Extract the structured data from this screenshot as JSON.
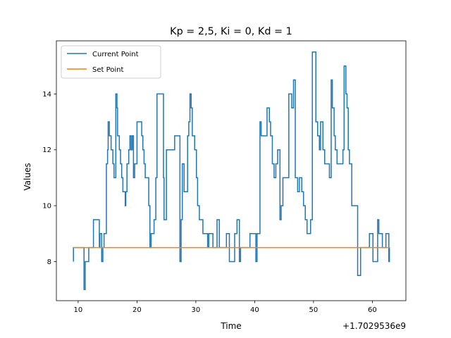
{
  "chart_data": {
    "type": "line",
    "title": "Kp = 2,5, Ki = 0, Kd = 1",
    "xlabel": "Time",
    "ylabel": "Values",
    "x_offset_label": "+1.7029536e9",
    "xlim": [
      6.3,
      65.7
    ],
    "ylim": [
      6.6,
      15.9
    ],
    "x_ticks": [
      10,
      20,
      30,
      40,
      50,
      60
    ],
    "y_ticks": [
      8,
      10,
      12,
      14
    ],
    "grid": false,
    "legend_position": "upper left",
    "series": [
      {
        "name": "Current Point",
        "color": "#1f77b4",
        "step": true,
        "points": [
          [
            9.2,
            8.0
          ],
          [
            9.2,
            8.5
          ],
          [
            10.9,
            8.5
          ],
          [
            11.0,
            7.0
          ],
          [
            11.2,
            8.0
          ],
          [
            11.8,
            8.5
          ],
          [
            12.6,
            9.5
          ],
          [
            13.6,
            8.5
          ],
          [
            13.7,
            9.0
          ],
          [
            14.0,
            8.0
          ],
          [
            14.2,
            8.5
          ],
          [
            14.4,
            9.0
          ],
          [
            14.8,
            11.5
          ],
          [
            15.0,
            12.0
          ],
          [
            15.1,
            13.0
          ],
          [
            15.3,
            12.5
          ],
          [
            15.6,
            12.0
          ],
          [
            15.9,
            11.5
          ],
          [
            16.1,
            11.0
          ],
          [
            16.4,
            14.0
          ],
          [
            16.6,
            13.5
          ],
          [
            16.7,
            12.5
          ],
          [
            17.0,
            12.0
          ],
          [
            17.2,
            11.5
          ],
          [
            17.4,
            11.0
          ],
          [
            17.6,
            10.5
          ],
          [
            18.0,
            10.0
          ],
          [
            18.1,
            10.5
          ],
          [
            18.3,
            11.5
          ],
          [
            18.6,
            12.0
          ],
          [
            18.8,
            12.5
          ],
          [
            19.0,
            12.0
          ],
          [
            19.2,
            12.5
          ],
          [
            19.4,
            11.0
          ],
          [
            19.6,
            11.5
          ],
          [
            20.0,
            13.0
          ],
          [
            20.8,
            12.5
          ],
          [
            21.0,
            12.0
          ],
          [
            21.2,
            11.5
          ],
          [
            21.4,
            11.0
          ],
          [
            22.0,
            10.0
          ],
          [
            22.2,
            8.5
          ],
          [
            22.4,
            9.0
          ],
          [
            22.9,
            9.5
          ],
          [
            23.2,
            11.0
          ],
          [
            23.4,
            14.0
          ],
          [
            24.5,
            11.0
          ],
          [
            24.6,
            9.5
          ],
          [
            25.0,
            12.0
          ],
          [
            26.4,
            12.5
          ],
          [
            27.3,
            8.0
          ],
          [
            27.5,
            9.5
          ],
          [
            27.7,
            11.5
          ],
          [
            28.0,
            10.5
          ],
          [
            28.6,
            12.5
          ],
          [
            28.8,
            13.0
          ],
          [
            29.0,
            14.0
          ],
          [
            29.2,
            13.5
          ],
          [
            29.4,
            12.5
          ],
          [
            29.8,
            12.0
          ],
          [
            30.1,
            11.0
          ],
          [
            30.3,
            10.0
          ],
          [
            30.6,
            9.5
          ],
          [
            31.2,
            9.0
          ],
          [
            32.0,
            8.5
          ],
          [
            32.2,
            9.0
          ],
          [
            32.5,
            9.0
          ],
          [
            32.9,
            8.5
          ],
          [
            33.6,
            9.5
          ],
          [
            34.0,
            8.5
          ],
          [
            35.2,
            9.0
          ],
          [
            35.7,
            8.0
          ],
          [
            36.6,
            9.0
          ],
          [
            37.0,
            9.5
          ],
          [
            37.4,
            8.0
          ],
          [
            37.6,
            8.5
          ],
          [
            39.2,
            9.0
          ],
          [
            40.2,
            8.0
          ],
          [
            40.4,
            9.0
          ],
          [
            40.9,
            13.0
          ],
          [
            41.1,
            12.5
          ],
          [
            42.1,
            13.5
          ],
          [
            42.5,
            13.0
          ],
          [
            42.7,
            12.5
          ],
          [
            43.0,
            11.5
          ],
          [
            43.3,
            11.0
          ],
          [
            43.6,
            11.5
          ],
          [
            43.9,
            12.0
          ],
          [
            44.3,
            9.5
          ],
          [
            44.5,
            10.0
          ],
          [
            44.8,
            11.0
          ],
          [
            45.8,
            14.0
          ],
          [
            46.3,
            13.5
          ],
          [
            46.6,
            14.5
          ],
          [
            46.9,
            11.0
          ],
          [
            47.3,
            10.5
          ],
          [
            47.6,
            11.0
          ],
          [
            48.0,
            10.5
          ],
          [
            48.3,
            10.0
          ],
          [
            48.6,
            9.5
          ],
          [
            48.9,
            9.0
          ],
          [
            49.5,
            9.5
          ],
          [
            49.8,
            15.5
          ],
          [
            50.4,
            13.0
          ],
          [
            50.7,
            12.5
          ],
          [
            51.0,
            12.0
          ],
          [
            51.2,
            13.0
          ],
          [
            51.6,
            12.0
          ],
          [
            51.9,
            11.5
          ],
          [
            52.7,
            11.0
          ],
          [
            53.0,
            14.5
          ],
          [
            53.2,
            13.5
          ],
          [
            53.5,
            12.5
          ],
          [
            53.7,
            12.0
          ],
          [
            54.0,
            11.5
          ],
          [
            55.0,
            12.0
          ],
          [
            55.2,
            15.0
          ],
          [
            55.5,
            14.0
          ],
          [
            55.7,
            13.5
          ],
          [
            55.9,
            12.0
          ],
          [
            56.1,
            11.5
          ],
          [
            56.5,
            10.0
          ],
          [
            57.5,
            7.5
          ],
          [
            58.0,
            8.5
          ],
          [
            59.2,
            8.5
          ],
          [
            59.5,
            9.0
          ],
          [
            60.1,
            8.0
          ],
          [
            60.9,
            9.5
          ],
          [
            61.1,
            9.0
          ],
          [
            61.7,
            8.5
          ],
          [
            62.1,
            8.5
          ],
          [
            62.3,
            9.0
          ],
          [
            62.8,
            8.0
          ],
          [
            62.9,
            8.5
          ],
          [
            63.0,
            8.5
          ]
        ]
      },
      {
        "name": "Set Point",
        "color": "#ff7f0e",
        "step": false,
        "points": [
          [
            9.2,
            8.5
          ],
          [
            63.0,
            8.5
          ]
        ]
      }
    ]
  }
}
